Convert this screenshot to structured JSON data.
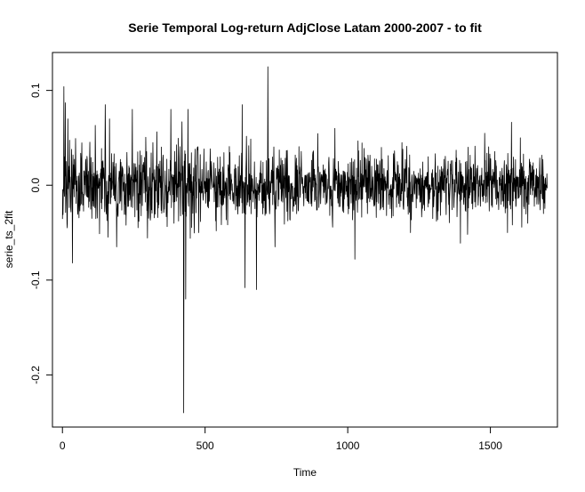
{
  "chart_data": {
    "type": "line",
    "title": "Serie Temporal Log-return AdjClose Latam 2000-2007 - to fit",
    "xlabel": "Time",
    "ylabel": "serie_ts_2fit",
    "xlim": [
      -35,
      1735
    ],
    "ylim": [
      -0.255,
      0.14
    ],
    "x_ticks": [
      0,
      500,
      1000,
      1500
    ],
    "x_tick_labels": [
      "0",
      "500",
      "1000",
      "1500"
    ],
    "y_ticks": [
      -0.2,
      -0.1,
      0.0,
      0.1
    ],
    "y_tick_labels": [
      "-0.2",
      "-0.1",
      "0.0",
      "0.1"
    ],
    "grid": false,
    "legend": "none",
    "n_points": 1700,
    "baseline_volatility": 0.017,
    "notable_points": [
      {
        "x": 3,
        "y": -0.01
      },
      {
        "x": 5,
        "y": 0.104
      },
      {
        "x": 10,
        "y": 0.087
      },
      {
        "x": 35,
        "y": -0.082
      },
      {
        "x": 150,
        "y": 0.085
      },
      {
        "x": 190,
        "y": -0.065
      },
      {
        "x": 245,
        "y": 0.08
      },
      {
        "x": 380,
        "y": 0.08
      },
      {
        "x": 425,
        "y": -0.24
      },
      {
        "x": 432,
        "y": -0.12
      },
      {
        "x": 440,
        "y": 0.08
      },
      {
        "x": 473,
        "y": 0.04
      },
      {
        "x": 478,
        "y": -0.05
      },
      {
        "x": 630,
        "y": 0.085
      },
      {
        "x": 640,
        "y": -0.108
      },
      {
        "x": 680,
        "y": -0.11
      },
      {
        "x": 720,
        "y": 0.125
      },
      {
        "x": 745,
        "y": -0.065
      },
      {
        "x": 955,
        "y": 0.06
      },
      {
        "x": 1025,
        "y": -0.078
      },
      {
        "x": 1190,
        "y": 0.045
      },
      {
        "x": 1220,
        "y": -0.05
      },
      {
        "x": 1560,
        "y": -0.05
      },
      {
        "x": 1605,
        "y": 0.05
      }
    ],
    "color": "#000000"
  }
}
